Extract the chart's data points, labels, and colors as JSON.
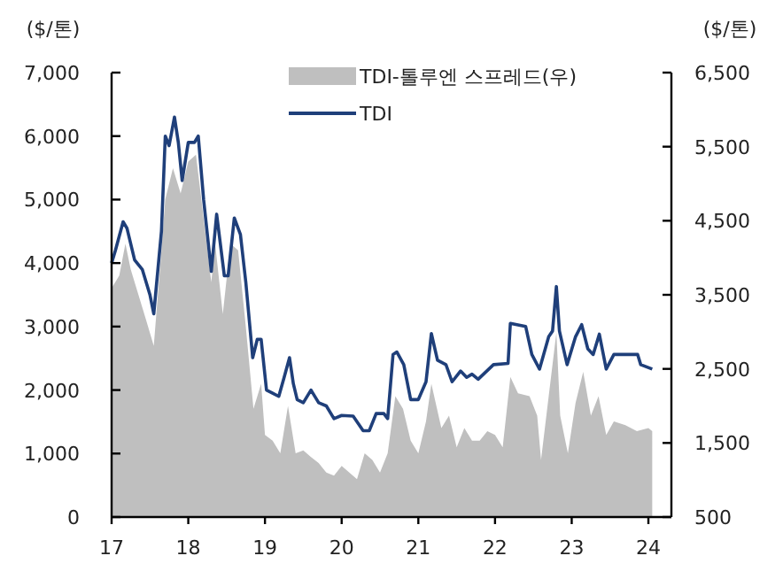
{
  "chart_data": {
    "type": "line",
    "ylabel": "($/톤)",
    "y2label": "($/톤)",
    "xlim": [
      17,
      24.3
    ],
    "xticks": [
      17,
      18,
      19,
      20,
      21,
      22,
      23,
      24
    ],
    "ylim": [
      0,
      7000
    ],
    "yticks": [
      0,
      {
        "value": 1000,
        "label": "1,000"
      },
      {
        "value": 2000,
        "label": "2,000"
      },
      {
        "value": 3000,
        "label": "3,000"
      },
      {
        "value": 4000,
        "label": "4,000"
      },
      {
        "value": 5000,
        "label": "5,000"
      },
      {
        "value": 6000,
        "label": "6,000"
      },
      {
        "value": 7000,
        "label": "7,000"
      }
    ],
    "y2lim": [
      500,
      6500
    ],
    "y2ticks": [
      500,
      {
        "value": 1500,
        "label": "1,500"
      },
      {
        "value": 2500,
        "label": "2,500"
      },
      {
        "value": 3500,
        "label": "3,500"
      },
      {
        "value": 4500,
        "label": "4,500"
      },
      {
        "value": 5500,
        "label": "5,500"
      },
      {
        "value": 6500,
        "label": "6,500"
      }
    ],
    "legend": "top right",
    "series": [
      {
        "name": "TDI-톨루엔 스프레드(우)",
        "type": "area",
        "axis": "y2",
        "color": "#bfbfbf",
        "x": [
          17.0,
          17.1,
          17.18,
          17.25,
          17.35,
          17.45,
          17.55,
          17.65,
          17.7,
          17.8,
          17.9,
          18.0,
          18.1,
          18.2,
          18.3,
          18.35,
          18.45,
          18.55,
          18.65,
          18.75,
          18.85,
          18.95,
          19.0,
          19.1,
          19.2,
          19.3,
          19.4,
          19.5,
          19.6,
          19.7,
          19.8,
          19.9,
          20.0,
          20.2,
          20.3,
          20.4,
          20.5,
          20.6,
          20.7,
          20.8,
          20.9,
          21.0,
          21.1,
          21.17,
          21.3,
          21.4,
          21.5,
          21.6,
          21.7,
          21.8,
          21.9,
          22.0,
          22.1,
          22.2,
          22.3,
          22.45,
          22.55,
          22.6,
          22.7,
          22.8,
          22.85,
          22.95,
          23.05,
          23.15,
          23.25,
          23.35,
          23.45,
          23.55,
          23.7,
          23.85,
          24.0,
          24.05
        ],
        "values": [
          3590,
          3760,
          4190,
          3840,
          3500,
          3160,
          2810,
          4100,
          4790,
          5210,
          4870,
          5300,
          5390,
          4530,
          3670,
          4190,
          3240,
          4190,
          4100,
          3070,
          1960,
          2300,
          1610,
          1530,
          1360,
          2000,
          1360,
          1400,
          1310,
          1230,
          1100,
          1060,
          1190,
          1010,
          1360,
          1270,
          1100,
          1360,
          2130,
          1960,
          1530,
          1360,
          1790,
          2300,
          1700,
          1870,
          1440,
          1700,
          1530,
          1530,
          1660,
          1610,
          1440,
          2390,
          2170,
          2130,
          1870,
          1270,
          2130,
          2990,
          1870,
          1360,
          2040,
          2460,
          1870,
          2130,
          1610,
          1790,
          1740,
          1660,
          1700,
          1660
        ]
      },
      {
        "name": "TDI",
        "type": "line",
        "color": "#1f3f7a",
        "x": [
          17.0,
          17.05,
          17.15,
          17.2,
          17.3,
          17.4,
          17.5,
          17.55,
          17.65,
          17.7,
          17.75,
          17.82,
          17.87,
          17.92,
          18.0,
          18.08,
          18.13,
          18.2,
          18.3,
          18.37,
          18.47,
          18.52,
          18.6,
          18.68,
          18.75,
          18.84,
          18.9,
          18.95,
          19.02,
          19.1,
          19.18,
          19.25,
          19.32,
          19.37,
          19.42,
          19.5,
          19.6,
          19.7,
          19.8,
          19.9,
          20.0,
          20.15,
          20.28,
          20.36,
          20.45,
          20.55,
          20.6,
          20.67,
          20.72,
          20.81,
          20.9,
          21.0,
          21.1,
          21.17,
          21.25,
          21.36,
          21.44,
          21.55,
          21.63,
          21.7,
          21.78,
          21.98,
          22.17,
          22.2,
          22.4,
          22.48,
          22.58,
          22.7,
          22.75,
          22.8,
          22.84,
          22.94,
          23.05,
          23.13,
          23.21,
          23.28,
          23.36,
          23.45,
          23.55,
          23.78,
          23.86,
          23.9,
          24.05
        ],
        "values": [
          4000,
          4200,
          4650,
          4550,
          4050,
          3900,
          3500,
          3200,
          4500,
          6000,
          5850,
          6300,
          5900,
          5300,
          5900,
          5900,
          6000,
          5000,
          3870,
          4770,
          3800,
          3800,
          4710,
          4450,
          3700,
          2510,
          2800,
          2800,
          2000,
          1950,
          1900,
          2200,
          2510,
          2100,
          1850,
          1800,
          2000,
          1800,
          1750,
          1550,
          1600,
          1590,
          1360,
          1360,
          1630,
          1630,
          1550,
          2560,
          2600,
          2400,
          1850,
          1850,
          2130,
          2890,
          2470,
          2400,
          2130,
          2300,
          2200,
          2250,
          2170,
          2400,
          2420,
          3050,
          3000,
          2560,
          2330,
          2840,
          2930,
          3630,
          2930,
          2400,
          2840,
          3030,
          2650,
          2560,
          2880,
          2330,
          2560,
          2560,
          2560,
          2400,
          2330
        ]
      }
    ]
  }
}
